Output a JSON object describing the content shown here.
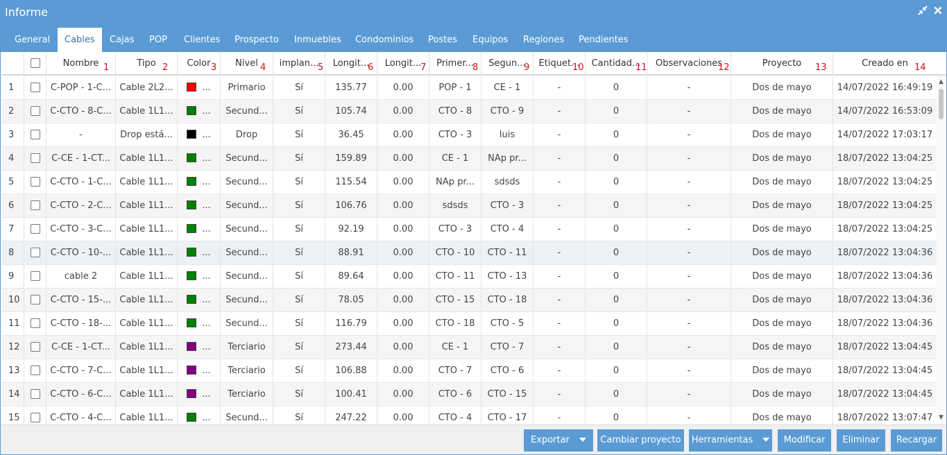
{
  "window": {
    "title": "Informe",
    "collapse_icon": "collapse-arrows-icon",
    "close_icon": "close-icon"
  },
  "tabs": [
    {
      "label": "General",
      "active": false
    },
    {
      "label": "Cables",
      "active": true
    },
    {
      "label": "Cajas",
      "active": false
    },
    {
      "label": "POP",
      "active": false
    },
    {
      "label": "Clientes",
      "active": false
    },
    {
      "label": "Prospecto",
      "active": false
    },
    {
      "label": "Inmuebles",
      "active": false
    },
    {
      "label": "Condominios",
      "active": false
    },
    {
      "label": "Postes",
      "active": false
    },
    {
      "label": "Equipos",
      "active": false
    },
    {
      "label": "Regiones",
      "active": false
    },
    {
      "label": "Pendientes",
      "active": false
    }
  ],
  "columns": [
    {
      "label": "Nombre",
      "marker": "1"
    },
    {
      "label": "Tipo",
      "marker": "2"
    },
    {
      "label": "Color",
      "marker": "3"
    },
    {
      "label": "Nivel",
      "marker": "4"
    },
    {
      "label": "implan...",
      "marker": "5"
    },
    {
      "label": "Longit...",
      "marker": "6"
    },
    {
      "label": "Longit...",
      "marker": "7"
    },
    {
      "label": "Primer...",
      "marker": "8"
    },
    {
      "label": "Segun...",
      "marker": "9"
    },
    {
      "label": "Etiquet...",
      "marker": "10"
    },
    {
      "label": "Cantidad...",
      "marker": "11"
    },
    {
      "label": "Observaciones",
      "marker": "12"
    },
    {
      "label": "Proyecto",
      "marker": "13"
    },
    {
      "label": "Creado en",
      "marker": "14"
    }
  ],
  "rows": [
    {
      "n": "1",
      "nombre": "C-POP - 1-C...",
      "tipo": "Cable 2L2...",
      "color": "#ff0000",
      "color_more": "...",
      "nivel": "Primario",
      "implan": "Sí",
      "long1": "135.77",
      "long2": "0.00",
      "primer": "POP - 1",
      "segun": "CE - 1",
      "etiq": "-",
      "cant": "0",
      "obs": "-",
      "proyecto": "Dos de mayo",
      "creado": "14/07/2022 16:49:19"
    },
    {
      "n": "2",
      "nombre": "C-CTO - 8-C...",
      "tipo": "Cable 1L1...",
      "color": "#008000",
      "color_more": "...",
      "nivel": "Secund...",
      "implan": "Sí",
      "long1": "105.74",
      "long2": "0.00",
      "primer": "CTO - 8",
      "segun": "CTO - 9",
      "etiq": "-",
      "cant": "0",
      "obs": "-",
      "proyecto": "Dos de mayo",
      "creado": "14/07/2022 16:53:09"
    },
    {
      "n": "3",
      "nombre": "-",
      "tipo": "Drop está...",
      "color": "#000000",
      "color_more": "...",
      "nivel": "Drop",
      "implan": "Sí",
      "long1": "36.45",
      "long2": "0.00",
      "primer": "CTO - 3",
      "segun": "luis",
      "etiq": "-",
      "cant": "0",
      "obs": "-",
      "proyecto": "Dos de mayo",
      "creado": "14/07/2022 17:03:17"
    },
    {
      "n": "4",
      "nombre": "C-CE - 1-CT...",
      "tipo": "Cable 1L1...",
      "color": "#008000",
      "color_more": "...",
      "nivel": "Secund...",
      "implan": "Sí",
      "long1": "159.89",
      "long2": "0.00",
      "primer": "CE - 1",
      "segun": "NAp pr...",
      "etiq": "-",
      "cant": "0",
      "obs": "-",
      "proyecto": "Dos de mayo",
      "creado": "18/07/2022 13:04:25"
    },
    {
      "n": "5",
      "nombre": "C-CTO - 1-C...",
      "tipo": "Cable 1L1...",
      "color": "#008000",
      "color_more": "...",
      "nivel": "Secund...",
      "implan": "Sí",
      "long1": "115.54",
      "long2": "0.00",
      "primer": "NAp pr...",
      "segun": "sdsds",
      "etiq": "-",
      "cant": "0",
      "obs": "-",
      "proyecto": "Dos de mayo",
      "creado": "18/07/2022 13:04:25"
    },
    {
      "n": "6",
      "nombre": "C-CTO - 2-C...",
      "tipo": "Cable 1L1...",
      "color": "#008000",
      "color_more": "...",
      "nivel": "Secund...",
      "implan": "Sí",
      "long1": "106.76",
      "long2": "0.00",
      "primer": "sdsds",
      "segun": "CTO - 3",
      "etiq": "-",
      "cant": "0",
      "obs": "-",
      "proyecto": "Dos de mayo",
      "creado": "18/07/2022 13:04:25"
    },
    {
      "n": "7",
      "nombre": "C-CTO - 3-C...",
      "tipo": "Cable 1L1...",
      "color": "#008000",
      "color_more": "...",
      "nivel": "Secund...",
      "implan": "Sí",
      "long1": "92.19",
      "long2": "0.00",
      "primer": "CTO - 3",
      "segun": "CTO - 4",
      "etiq": "-",
      "cant": "0",
      "obs": "-",
      "proyecto": "Dos de mayo",
      "creado": "18/07/2022 13:04:25"
    },
    {
      "n": "8",
      "nombre": "C-CTO - 10-...",
      "tipo": "Cable 1L1...",
      "color": "#008000",
      "color_more": "...",
      "nivel": "Secund...",
      "implan": "Sí",
      "long1": "88.91",
      "long2": "0.00",
      "primer": "CTO - 10",
      "segun": "CTO - 11",
      "etiq": "-",
      "cant": "0",
      "obs": "-",
      "proyecto": "Dos de mayo",
      "creado": "18/07/2022 13:04:36"
    },
    {
      "n": "9",
      "nombre": "cable 2",
      "tipo": "Cable 1L1...",
      "color": "#008000",
      "color_more": "...",
      "nivel": "Secund...",
      "implan": "Sí",
      "long1": "89.64",
      "long2": "0.00",
      "primer": "CTO - 11",
      "segun": "CTO - 13",
      "etiq": "-",
      "cant": "0",
      "obs": "-",
      "proyecto": "Dos de mayo",
      "creado": "18/07/2022 13:04:36"
    },
    {
      "n": "10",
      "nombre": "C-CTO - 15-...",
      "tipo": "Cable 1L1...",
      "color": "#008000",
      "color_more": "...",
      "nivel": "Secund...",
      "implan": "Sí",
      "long1": "78.05",
      "long2": "0.00",
      "primer": "CTO - 15",
      "segun": "CTO - 18",
      "etiq": "-",
      "cant": "0",
      "obs": "-",
      "proyecto": "Dos de mayo",
      "creado": "18/07/2022 13:04:36"
    },
    {
      "n": "11",
      "nombre": "C-CTO - 18-...",
      "tipo": "Cable 1L1...",
      "color": "#008000",
      "color_more": "...",
      "nivel": "Secund...",
      "implan": "Sí",
      "long1": "116.79",
      "long2": "0.00",
      "primer": "CTO - 18",
      "segun": "CTO - 5",
      "etiq": "-",
      "cant": "0",
      "obs": "-",
      "proyecto": "Dos de mayo",
      "creado": "18/07/2022 13:04:36"
    },
    {
      "n": "12",
      "nombre": "C-CE - 1-CT...",
      "tipo": "Cable 1L1...",
      "color": "#800080",
      "color_more": "...",
      "nivel": "Terciario",
      "implan": "Sí",
      "long1": "273.44",
      "long2": "0.00",
      "primer": "CE - 1",
      "segun": "CTO - 7",
      "etiq": "-",
      "cant": "0",
      "obs": "-",
      "proyecto": "Dos de mayo",
      "creado": "18/07/2022 13:04:45"
    },
    {
      "n": "13",
      "nombre": "C-CTO - 7-C...",
      "tipo": "Cable 1L1...",
      "color": "#800080",
      "color_more": "...",
      "nivel": "Terciario",
      "implan": "Sí",
      "long1": "106.88",
      "long2": "0.00",
      "primer": "CTO - 7",
      "segun": "CTO - 6",
      "etiq": "-",
      "cant": "0",
      "obs": "-",
      "proyecto": "Dos de mayo",
      "creado": "18/07/2022 13:04:45"
    },
    {
      "n": "14",
      "nombre": "C-CTO - 6-C...",
      "tipo": "Cable 1L1...",
      "color": "#800080",
      "color_more": "...",
      "nivel": "Terciario",
      "implan": "Sí",
      "long1": "100.41",
      "long2": "0.00",
      "primer": "CTO - 6",
      "segun": "CTO - 15",
      "etiq": "-",
      "cant": "0",
      "obs": "-",
      "proyecto": "Dos de mayo",
      "creado": "18/07/2022 13:04:45"
    },
    {
      "n": "15",
      "nombre": "C-CTO - 4-C...",
      "tipo": "Cable 1L1...",
      "color": "#008000",
      "color_more": "...",
      "nivel": "Secund...",
      "implan": "Sí",
      "long1": "247.22",
      "long2": "0.00",
      "primer": "CTO - 4",
      "segun": "CTO - 17",
      "etiq": "-",
      "cant": "0",
      "obs": "-",
      "proyecto": "Dos de mayo",
      "creado": "18/07/2022 13:07:47"
    }
  ],
  "footer": {
    "exportar": "Exportar",
    "cambiar_proyecto": "Cambiar proyecto",
    "herramientas": "Herramientas",
    "modificar": "Modificar",
    "eliminar": "Eliminar",
    "recargar": "Recargar"
  },
  "colors": {
    "accent": "#5b9bd5",
    "marker": "#d01010"
  }
}
